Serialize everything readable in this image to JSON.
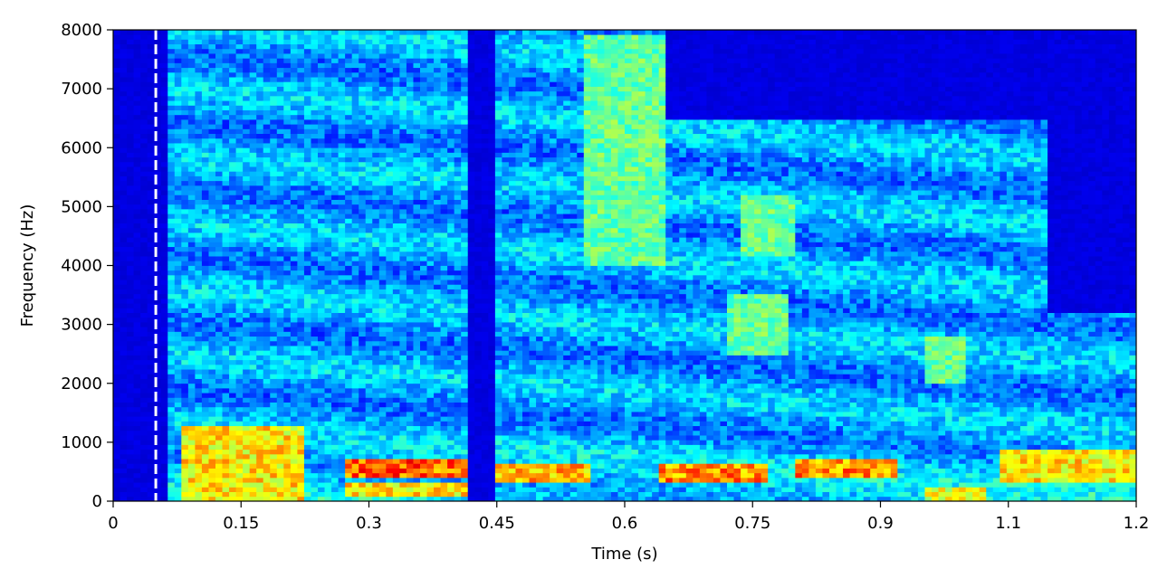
{
  "chart_data": {
    "type": "heatmap",
    "title": "",
    "xlabel": "Time (s)",
    "ylabel": "Frequency (Hz)",
    "xlim": [
      0,
      1.2
    ],
    "ylim": [
      0,
      8000
    ],
    "x_ticks": [
      0,
      0.15,
      0.3,
      0.45,
      0.6,
      0.75,
      0.9,
      1.05,
      1.2
    ],
    "x_tick_labels": [
      "0",
      "0.15",
      "0.3",
      "0.45",
      "0.6",
      "0.75",
      "0.9",
      "1.1",
      "1.2"
    ],
    "y_ticks": [
      0,
      1000,
      2000,
      3000,
      4000,
      5000,
      6000,
      7000,
      8000
    ],
    "y_tick_labels": [
      "0",
      "1000",
      "2000",
      "3000",
      "4000",
      "5000",
      "6000",
      "7000",
      "8000"
    ],
    "colormap": "jet",
    "marker_line": {
      "x": 0.05,
      "style": "dashed",
      "color": "#ffffff"
    },
    "energy_regions": [
      {
        "t0": 0.08,
        "t1": 0.22,
        "f0": 0,
        "f1": 1300,
        "level": 0.75
      },
      {
        "t0": 0.27,
        "t1": 0.42,
        "f0": 400,
        "f1": 700,
        "level": 0.9
      },
      {
        "t0": 0.27,
        "t1": 0.42,
        "f0": 100,
        "f1": 350,
        "level": 0.75
      },
      {
        "t0": 0.42,
        "t1": 0.56,
        "f0": 350,
        "f1": 650,
        "level": 0.8
      },
      {
        "t0": 0.64,
        "t1": 0.77,
        "f0": 350,
        "f1": 650,
        "level": 0.85
      },
      {
        "t0": 0.8,
        "t1": 0.92,
        "f0": 400,
        "f1": 700,
        "level": 0.85
      },
      {
        "t0": 0.95,
        "t1": 1.02,
        "f0": 0,
        "f1": 200,
        "level": 0.7
      },
      {
        "t0": 1.04,
        "t1": 1.2,
        "f0": 300,
        "f1": 900,
        "level": 0.75
      },
      {
        "t0": 0.55,
        "t1": 0.65,
        "f0": 4000,
        "f1": 7900,
        "level": 0.55
      },
      {
        "t0": 0.72,
        "t1": 0.79,
        "f0": 2500,
        "f1": 3500,
        "level": 0.55
      },
      {
        "t0": 0.74,
        "t1": 0.8,
        "f0": 4200,
        "f1": 5200,
        "level": 0.55
      },
      {
        "t0": 0.95,
        "t1": 1.0,
        "f0": 2000,
        "f1": 2800,
        "level": 0.55
      }
    ],
    "silent_regions": [
      {
        "t0": 0.0,
        "t1": 0.06,
        "f0": 0,
        "f1": 8000
      },
      {
        "t0": 0.42,
        "t1": 0.45,
        "f0": 0,
        "f1": 8000
      },
      {
        "t0": 0.65,
        "t1": 1.2,
        "f0": 6500,
        "f1": 8000
      },
      {
        "t0": 1.1,
        "t1": 1.2,
        "f0": 3200,
        "f1": 8000
      }
    ]
  }
}
